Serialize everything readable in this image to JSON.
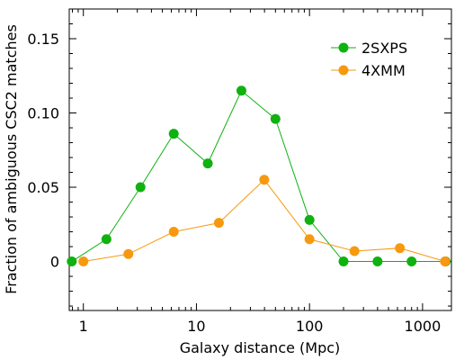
{
  "chart_data": {
    "type": "line",
    "xlabel": "Galaxy distance (Mpc)",
    "ylabel": "Fraction of ambiguous CSC2 matches",
    "xscale": "log",
    "xlim": [
      0.75,
      1800
    ],
    "ylim": [
      -0.033,
      0.17
    ],
    "x_ticks": [
      {
        "value": 1,
        "label": "1"
      },
      {
        "value": 10,
        "label": "10"
      },
      {
        "value": 100,
        "label": "100"
      },
      {
        "value": 1000,
        "label": "1000"
      }
    ],
    "y_ticks": [
      {
        "value": 0,
        "label": "0"
      },
      {
        "value": 0.05,
        "label": "0.05"
      },
      {
        "value": 0.1,
        "label": "0.10"
      },
      {
        "value": 0.15,
        "label": "0.15"
      }
    ],
    "grid": false,
    "legend": "top-right",
    "series": [
      {
        "name": "2SXPS",
        "color": "#0fb20f",
        "x": [
          0.79,
          1.6,
          3.2,
          6.3,
          12.6,
          25,
          50,
          100,
          200,
          400,
          800,
          1600
        ],
        "y": [
          0.0,
          0.015,
          0.05,
          0.086,
          0.066,
          0.115,
          0.096,
          0.028,
          0.0,
          0.0,
          0.0,
          0.0
        ]
      },
      {
        "name": "4XMM",
        "color": "#f7990f",
        "x": [
          1.0,
          2.5,
          6.3,
          15.8,
          39.8,
          100,
          250,
          630,
          1580
        ],
        "y": [
          0.0,
          0.005,
          0.02,
          0.026,
          0.055,
          0.015,
          0.007,
          0.009,
          0.0
        ]
      }
    ]
  }
}
